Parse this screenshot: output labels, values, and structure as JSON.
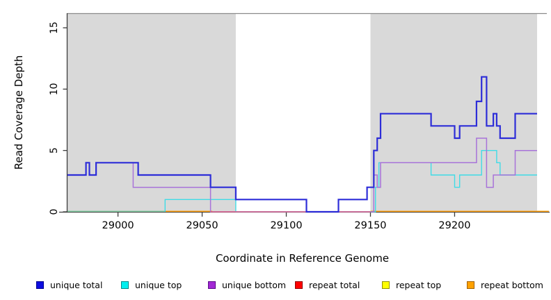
{
  "figure": {
    "background": "#ffffff"
  },
  "chart_data": {
    "type": "line",
    "subtype": "step-coverage",
    "title": "",
    "xlabel": "Coordinate in Reference Genome",
    "ylabel": "Read Coverage Depth",
    "xlim": [
      28970,
      29249
    ],
    "ylim": [
      0,
      16
    ],
    "x_ticks": [
      29000,
      29050,
      29100,
      29150,
      29200
    ],
    "y_ticks": [
      0,
      5,
      10,
      15
    ],
    "grid": false,
    "shaded_regions": [
      {
        "name": "left-shaded-region",
        "from": 28970,
        "to": 29070
      },
      {
        "name": "right-shaded-region",
        "from": 29150,
        "to": 29249
      }
    ],
    "baseline_segments": [
      {
        "name": "unique-top-repeat-top-overlap-zero",
        "from": 28970,
        "to": 29028,
        "color": "#82cba1"
      },
      {
        "name": "repeat-bottom-zero-left",
        "from": 29028,
        "to": 29056,
        "color": "#ff9f0e"
      },
      {
        "name": "repeat-bottom-zero-right",
        "from": 29150,
        "to": 29256,
        "color": "#ff9f0e"
      }
    ],
    "series": [
      {
        "name": "unique top",
        "color": "#3fdce6",
        "width": 1.4,
        "end": 29249,
        "steps": [
          [
            29028,
            0
          ],
          [
            29028,
            1
          ],
          [
            29070,
            0
          ],
          [
            29153,
            0
          ],
          [
            29153,
            2
          ],
          [
            29155,
            4
          ],
          [
            29186,
            3
          ],
          [
            29200,
            2
          ],
          [
            29203,
            3
          ],
          [
            29216,
            5
          ],
          [
            29225,
            4
          ],
          [
            29227,
            3
          ]
        ]
      },
      {
        "name": "unique bottom",
        "color": "#a873d9",
        "width": 1.5,
        "end": 29249,
        "steps": [
          [
            28970,
            3
          ],
          [
            28981,
            4
          ],
          [
            28983,
            3
          ],
          [
            28987,
            4
          ],
          [
            29009,
            2
          ],
          [
            29055,
            0
          ],
          [
            29152,
            3
          ],
          [
            29154,
            2
          ],
          [
            29156,
            4
          ],
          [
            29213,
            6
          ],
          [
            29219,
            2
          ],
          [
            29223,
            3
          ],
          [
            29236,
            5
          ]
        ]
      },
      {
        "name": "repeat total",
        "color": "#d96085",
        "width": 1.4,
        "end": 29150,
        "steps": [
          [
            29055,
            0
          ]
        ]
      },
      {
        "name": "unique total",
        "color": "#2d2dd8",
        "width": 2.2,
        "end": 29249,
        "steps": [
          [
            28970,
            3
          ],
          [
            28981,
            4
          ],
          [
            28983,
            3
          ],
          [
            28987,
            4
          ],
          [
            29012,
            3
          ],
          [
            29055,
            2
          ],
          [
            29070,
            1
          ],
          [
            29112,
            0
          ],
          [
            29131,
            1
          ],
          [
            29148,
            2
          ],
          [
            29152,
            5
          ],
          [
            29154,
            6
          ],
          [
            29156,
            8
          ],
          [
            29186,
            7
          ],
          [
            29200,
            6
          ],
          [
            29203,
            7
          ],
          [
            29213,
            9
          ],
          [
            29216,
            11
          ],
          [
            29219,
            7
          ],
          [
            29223,
            8
          ],
          [
            29225,
            7
          ],
          [
            29227,
            6
          ],
          [
            29236,
            8
          ]
        ]
      }
    ],
    "legend": {
      "position": "bottom",
      "items": [
        {
          "label": "unique total",
          "fill": "#0d0de0",
          "border": "#000090"
        },
        {
          "label": "unique top",
          "fill": "#00f0f0",
          "border": "#008b8b"
        },
        {
          "label": "unique bottom",
          "fill": "#a228d4",
          "border": "#5a0a8a"
        },
        {
          "label": "repeat total",
          "fill": "#ff0000",
          "border": "#900000"
        },
        {
          "label": "repeat top",
          "fill": "#ffff00",
          "border": "#909000"
        },
        {
          "label": "repeat bottom",
          "fill": "#ffa200",
          "border": "#a06000"
        }
      ]
    },
    "colors": {
      "shade": "#d9d9d9",
      "plot_top_border": "#8a8a8a",
      "axis": "#3c3c3c",
      "tick_text": "#000000"
    }
  }
}
